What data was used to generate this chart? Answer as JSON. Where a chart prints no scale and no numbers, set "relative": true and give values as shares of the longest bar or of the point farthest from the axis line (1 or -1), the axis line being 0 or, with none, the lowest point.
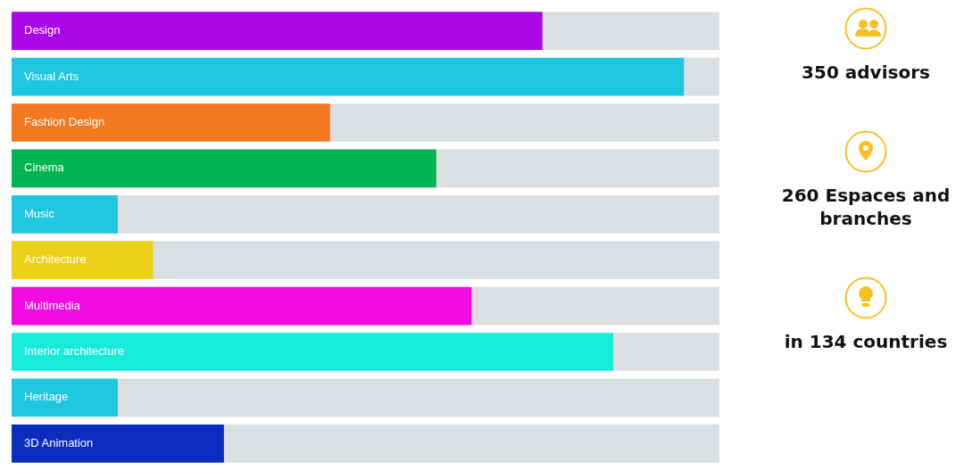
{
  "chart_data": [
    {
      "type": "bar",
      "orientation": "horizontal",
      "stacked": true,
      "relative": true,
      "legend": false,
      "categories": [
        "Design",
        "Visual Arts",
        "Fashion Design",
        "Cinema",
        "Music",
        "Architecture",
        "Multimedia",
        "Interior architecture",
        "Heritage",
        "3D Animation"
      ],
      "series": [
        {
          "colors": [
            "#aa07e8",
            "#1ec6df",
            "#f3781f",
            "#02b351",
            "#1ec6df",
            "#ebd01a",
            "#f20ae2",
            "#19ebdb",
            "#1ec6df",
            "#0b2dbd"
          ],
          "values": [
            0.75,
            0.95,
            0.45,
            0.6,
            0.15,
            0.2,
            0.65,
            0.85,
            0.15,
            0.3
          ]
        },
        {
          "color": "#dcdfe2",
          "values": [
            0.25,
            0.05,
            0.55,
            0.4,
            0.85,
            0.8,
            0.35,
            0.15,
            0.85,
            0.7
          ]
        }
      ]
    },
    {
      "type": "other",
      "annotations": [
        "350 advisors",
        "260 Espaces and branches",
        "in 134 countries"
      ]
    }
  ]
}
